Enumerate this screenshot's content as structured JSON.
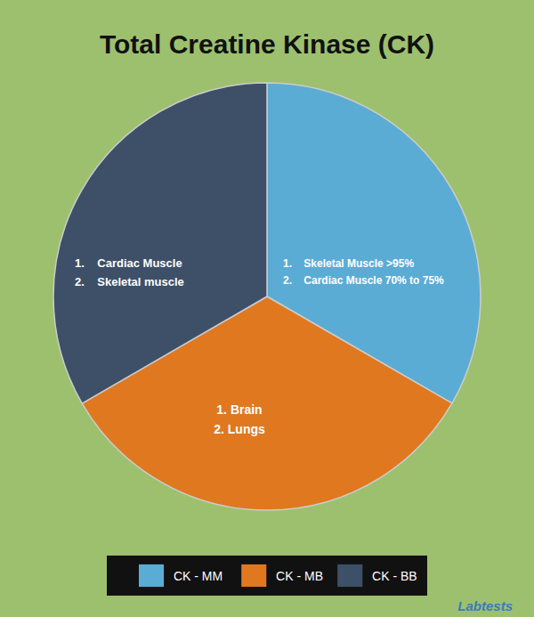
{
  "chart_data": {
    "type": "pie",
    "title": "Total Creatine Kinase (CK)",
    "categories": [
      "CK - MM",
      "CK - MB",
      "CK - BB"
    ],
    "values": [
      33.33,
      33.33,
      33.34
    ],
    "colors": [
      "#5bacd4",
      "#e07820",
      "#3d5068"
    ],
    "legend": "bottom",
    "annotations": [
      "1.    Skeletal Muscle >95%",
      "2.    Cardiac Muscle 70% to 75%",
      "1. Brain",
      "2. Lungs",
      "1.    Cardiac Muscle",
      "2.    Skeletal muscle",
      "Labtests"
    ]
  }
}
